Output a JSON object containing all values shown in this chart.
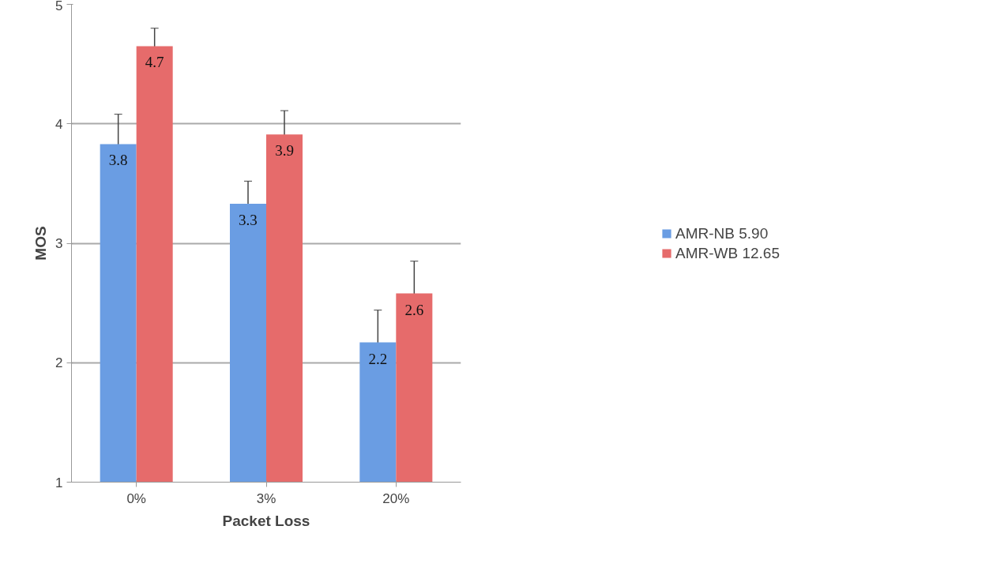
{
  "chart_data": {
    "type": "bar",
    "xlabel": "Packet Loss",
    "ylabel": "MOS",
    "categories": [
      "0%",
      "3%",
      "20%"
    ],
    "series": [
      {
        "name": "AMR-NB 5.90",
        "color": "#6a9de3",
        "values": [
          3.83,
          3.33,
          2.17
        ],
        "errors": [
          0.25,
          0.19,
          0.27
        ],
        "value_labels": [
          "3.8",
          "3.3",
          "2.2"
        ]
      },
      {
        "name": "AMR-WB 12.65",
        "color": "#e66b6b",
        "values": [
          4.65,
          3.91,
          2.58
        ],
        "errors": [
          0.15,
          0.2,
          0.27
        ],
        "value_labels": [
          "4.7",
          "3.9",
          "2.6"
        ]
      }
    ],
    "ylim": [
      1,
      5
    ],
    "yticks": [
      1,
      2,
      3,
      4,
      5
    ],
    "grid": "y",
    "legend": "right"
  }
}
